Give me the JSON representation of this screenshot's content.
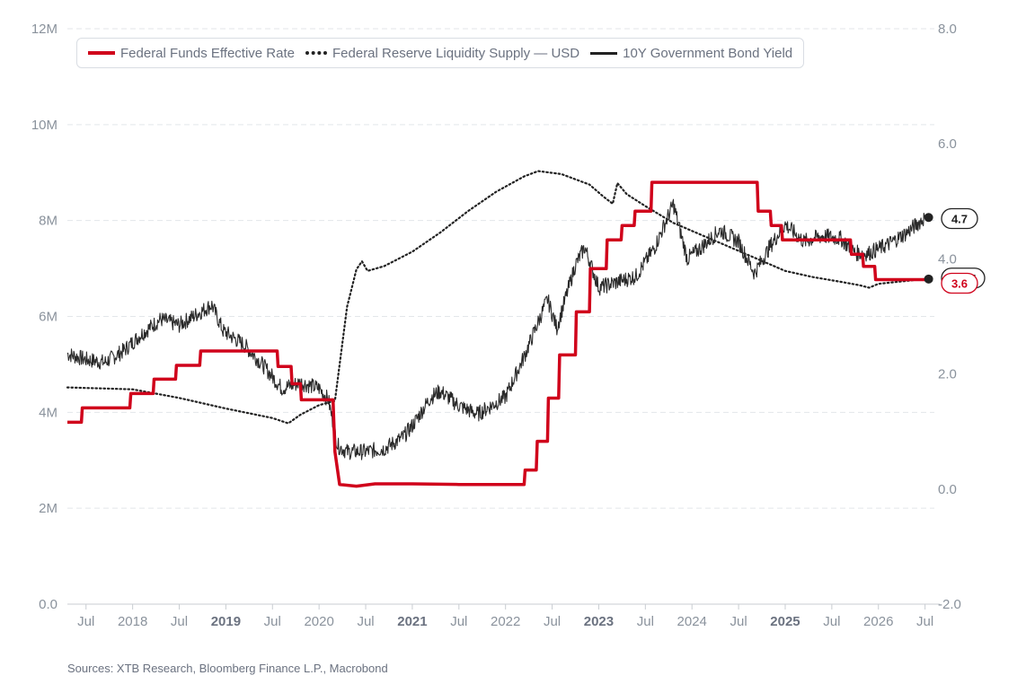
{
  "chart_data": {
    "type": "line",
    "legend": [
      {
        "name": "Federal Funds Effective Rate",
        "color": "#d0021b",
        "style": "solid-thick"
      },
      {
        "name": "Federal Reserve Liquidity Supply — USD",
        "color": "#222222",
        "style": "dotted"
      },
      {
        "name": "10Y Government Bond Yield",
        "color": "#222222",
        "style": "solid"
      }
    ],
    "legend_position": "top-left",
    "grid": true,
    "x_ticks": [
      {
        "label": "Jul",
        "t": 2017.5,
        "bold": false
      },
      {
        "label": "2018",
        "t": 2018.0,
        "bold": false
      },
      {
        "label": "Jul",
        "t": 2018.5,
        "bold": false
      },
      {
        "label": "2019",
        "t": 2019.0,
        "bold": true
      },
      {
        "label": "Jul",
        "t": 2019.5,
        "bold": false
      },
      {
        "label": "2020",
        "t": 2020.0,
        "bold": false
      },
      {
        "label": "Jul",
        "t": 2020.5,
        "bold": false
      },
      {
        "label": "2021",
        "t": 2021.0,
        "bold": true
      },
      {
        "label": "Jul",
        "t": 2021.5,
        "bold": false
      },
      {
        "label": "2022",
        "t": 2022.0,
        "bold": false
      },
      {
        "label": "Jul",
        "t": 2022.5,
        "bold": false
      },
      {
        "label": "2023",
        "t": 2023.0,
        "bold": true
      },
      {
        "label": "Jul",
        "t": 2023.5,
        "bold": false
      },
      {
        "label": "2024",
        "t": 2024.0,
        "bold": false
      },
      {
        "label": "Jul",
        "t": 2024.5,
        "bold": false
      },
      {
        "label": "2025",
        "t": 2025.0,
        "bold": true
      },
      {
        "label": "Jul",
        "t": 2025.5,
        "bold": false
      },
      {
        "label": "2026",
        "t": 2026.0,
        "bold": false
      },
      {
        "label": "Jul",
        "t": 2026.5,
        "bold": false
      }
    ],
    "y_left": {
      "ticks": [
        "0.0",
        "2M",
        "4M",
        "6M",
        "8M",
        "10M",
        "12M"
      ],
      "values": [
        0,
        2,
        4,
        6,
        8,
        10,
        12
      ],
      "ylim": [
        0,
        12
      ]
    },
    "y_right": {
      "ticks": [
        "-2.0",
        "0.0",
        "2.0",
        "4.0",
        "6.0",
        "8.0"
      ],
      "values": [
        -2,
        0,
        2,
        4,
        6,
        8
      ],
      "ylim": [
        -2,
        8
      ]
    },
    "series": [
      {
        "name": "Federal Funds Effective Rate",
        "axis": "right",
        "values": [
          [
            2017.3,
            1.16
          ],
          [
            2017.45,
            1.16
          ],
          [
            2017.46,
            1.41
          ],
          [
            2017.97,
            1.41
          ],
          [
            2017.98,
            1.66
          ],
          [
            2018.22,
            1.66
          ],
          [
            2018.23,
            1.91
          ],
          [
            2018.46,
            1.91
          ],
          [
            2018.47,
            2.15
          ],
          [
            2018.72,
            2.15
          ],
          [
            2018.73,
            2.4
          ],
          [
            2018.97,
            2.4
          ],
          [
            2018.98,
            2.4
          ],
          [
            2019.55,
            2.4
          ],
          [
            2019.56,
            2.13
          ],
          [
            2019.7,
            2.13
          ],
          [
            2019.71,
            1.83
          ],
          [
            2019.8,
            1.83
          ],
          [
            2019.81,
            1.55
          ],
          [
            2020.15,
            1.55
          ],
          [
            2020.17,
            0.65
          ],
          [
            2020.22,
            0.08
          ],
          [
            2020.4,
            0.05
          ],
          [
            2020.6,
            0.09
          ],
          [
            2021.0,
            0.09
          ],
          [
            2021.5,
            0.08
          ],
          [
            2021.9,
            0.08
          ],
          [
            2022.0,
            0.08
          ],
          [
            2022.2,
            0.08
          ],
          [
            2022.21,
            0.33
          ],
          [
            2022.33,
            0.33
          ],
          [
            2022.34,
            0.83
          ],
          [
            2022.45,
            0.83
          ],
          [
            2022.46,
            1.58
          ],
          [
            2022.57,
            1.58
          ],
          [
            2022.58,
            2.33
          ],
          [
            2022.75,
            2.33
          ],
          [
            2022.76,
            3.08
          ],
          [
            2022.9,
            3.08
          ],
          [
            2022.91,
            3.83
          ],
          [
            2023.08,
            3.83
          ],
          [
            2023.09,
            4.33
          ],
          [
            2023.24,
            4.33
          ],
          [
            2023.25,
            4.58
          ],
          [
            2023.38,
            4.58
          ],
          [
            2023.39,
            4.83
          ],
          [
            2023.56,
            4.83
          ],
          [
            2023.57,
            5.33
          ],
          [
            2024.7,
            5.33
          ],
          [
            2024.71,
            4.83
          ],
          [
            2024.84,
            4.83
          ],
          [
            2024.85,
            4.58
          ],
          [
            2024.96,
            4.58
          ],
          [
            2024.97,
            4.33
          ],
          [
            2025.7,
            4.33
          ],
          [
            2025.71,
            4.08
          ],
          [
            2025.83,
            4.08
          ],
          [
            2025.84,
            3.87
          ],
          [
            2025.96,
            3.87
          ],
          [
            2025.97,
            3.64
          ],
          [
            2026.5,
            3.64
          ]
        ]
      },
      {
        "name": "Federal Reserve Liquidity Supply — USD",
        "axis": "left",
        "values": [
          [
            2017.3,
            4.52
          ],
          [
            2018.0,
            4.48
          ],
          [
            2018.5,
            4.3
          ],
          [
            2019.0,
            4.08
          ],
          [
            2019.5,
            3.88
          ],
          [
            2019.67,
            3.77
          ],
          [
            2019.8,
            3.95
          ],
          [
            2020.0,
            4.15
          ],
          [
            2020.17,
            4.24
          ],
          [
            2020.24,
            5.3
          ],
          [
            2020.3,
            6.2
          ],
          [
            2020.4,
            6.98
          ],
          [
            2020.46,
            7.15
          ],
          [
            2020.52,
            6.95
          ],
          [
            2020.7,
            7.05
          ],
          [
            2021.0,
            7.35
          ],
          [
            2021.3,
            7.75
          ],
          [
            2021.6,
            8.2
          ],
          [
            2021.9,
            8.6
          ],
          [
            2022.2,
            8.92
          ],
          [
            2022.35,
            9.03
          ],
          [
            2022.6,
            8.97
          ],
          [
            2022.9,
            8.75
          ],
          [
            2023.05,
            8.5
          ],
          [
            2023.15,
            8.35
          ],
          [
            2023.2,
            8.78
          ],
          [
            2023.3,
            8.55
          ],
          [
            2023.5,
            8.3
          ],
          [
            2023.8,
            7.95
          ],
          [
            2024.1,
            7.7
          ],
          [
            2024.4,
            7.45
          ],
          [
            2024.7,
            7.2
          ],
          [
            2025.0,
            6.95
          ],
          [
            2025.3,
            6.82
          ],
          [
            2025.6,
            6.72
          ],
          [
            2025.8,
            6.65
          ],
          [
            2025.9,
            6.6
          ],
          [
            2026.0,
            6.68
          ],
          [
            2026.2,
            6.72
          ],
          [
            2026.5,
            6.78
          ]
        ]
      },
      {
        "name": "10Y Government Bond Yield",
        "axis": "right",
        "values": [
          [
            2017.3,
            2.35
          ],
          [
            2017.5,
            2.25
          ],
          [
            2017.7,
            2.2
          ],
          [
            2017.9,
            2.4
          ],
          [
            2018.1,
            2.7
          ],
          [
            2018.3,
            2.95
          ],
          [
            2018.5,
            2.85
          ],
          [
            2018.7,
            3.05
          ],
          [
            2018.85,
            3.2
          ],
          [
            2018.97,
            2.75
          ],
          [
            2019.2,
            2.5
          ],
          [
            2019.4,
            2.15
          ],
          [
            2019.6,
            1.75
          ],
          [
            2019.8,
            1.85
          ],
          [
            2020.0,
            1.75
          ],
          [
            2020.1,
            1.55
          ],
          [
            2020.2,
            0.75
          ],
          [
            2020.3,
            0.65
          ],
          [
            2020.5,
            0.65
          ],
          [
            2020.7,
            0.7
          ],
          [
            2020.9,
            0.9
          ],
          [
            2021.0,
            1.1
          ],
          [
            2021.2,
            1.6
          ],
          [
            2021.3,
            1.7
          ],
          [
            2021.5,
            1.45
          ],
          [
            2021.7,
            1.3
          ],
          [
            2021.9,
            1.5
          ],
          [
            2022.0,
            1.6
          ],
          [
            2022.2,
            2.3
          ],
          [
            2022.35,
            2.9
          ],
          [
            2022.45,
            3.3
          ],
          [
            2022.55,
            2.8
          ],
          [
            2022.75,
            3.9
          ],
          [
            2022.85,
            4.2
          ],
          [
            2023.0,
            3.5
          ],
          [
            2023.2,
            3.6
          ],
          [
            2023.4,
            3.7
          ],
          [
            2023.6,
            4.2
          ],
          [
            2023.8,
            4.95
          ],
          [
            2023.95,
            4.0
          ],
          [
            2024.1,
            4.2
          ],
          [
            2024.3,
            4.5
          ],
          [
            2024.5,
            4.3
          ],
          [
            2024.67,
            3.75
          ],
          [
            2024.85,
            4.25
          ],
          [
            2025.0,
            4.6
          ],
          [
            2025.2,
            4.3
          ],
          [
            2025.4,
            4.4
          ],
          [
            2025.6,
            4.35
          ],
          [
            2025.75,
            4.1
          ],
          [
            2025.9,
            4.1
          ],
          [
            2026.1,
            4.25
          ],
          [
            2026.3,
            4.45
          ],
          [
            2026.5,
            4.72
          ]
        ]
      }
    ],
    "end_labels": [
      {
        "text": "4.7",
        "series": "10Y Government Bond Yield",
        "axis": "right",
        "value": 4.7,
        "color": "#222222"
      },
      {
        "text": "6.8M",
        "series": "Federal Reserve Liquidity Supply — USD",
        "axis": "left",
        "value": 6.8,
        "color": "#222222"
      },
      {
        "text": "3.6",
        "series": "Federal Funds Effective Rate",
        "axis": "right",
        "value": 3.64,
        "color": "#d0021b"
      }
    ]
  },
  "source": "Sources: XTB Research, Bloomberg Finance L.P., Macrobond"
}
